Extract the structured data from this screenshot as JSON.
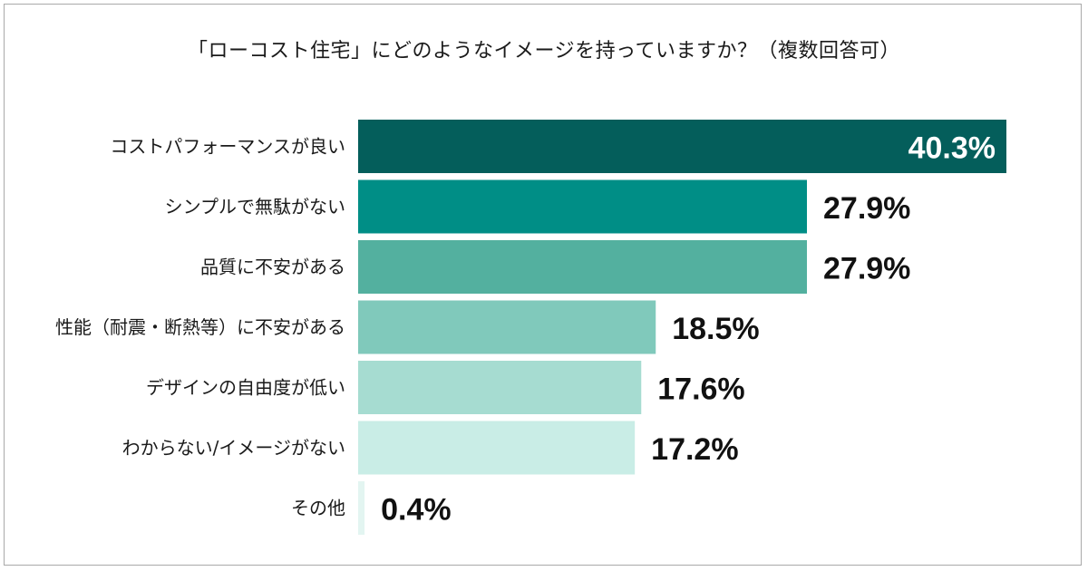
{
  "chart_data": {
    "type": "bar",
    "orientation": "horizontal",
    "title": "「ローコスト住宅」にどのようなイメージを持っていますか？（複数回答可）",
    "categories": [
      "コストパフォーマンスが良い",
      "シンプルで無駄がない",
      "品質に不安がある",
      "性能（耐震・断熱等）に不安がある",
      "デザインの自由度が低い",
      "わからない/イメージがない",
      "その他"
    ],
    "values": [
      40.3,
      27.9,
      27.9,
      18.5,
      17.6,
      17.2,
      0.4
    ],
    "value_labels": [
      "40.3%",
      "27.9%",
      "27.9%",
      "18.5%",
      "17.6%",
      "17.2%",
      "0.4%"
    ],
    "unit": "%",
    "xlim": [
      0,
      40.3
    ],
    "grid": false,
    "legend": "none",
    "bar_colors": [
      "#045e5b",
      "#008e86",
      "#53b09f",
      "#80c9bb",
      "#a6dcd1",
      "#c9ede6",
      "#e3f5f1"
    ],
    "label_inside_first_bar_color": "#ffffff"
  }
}
